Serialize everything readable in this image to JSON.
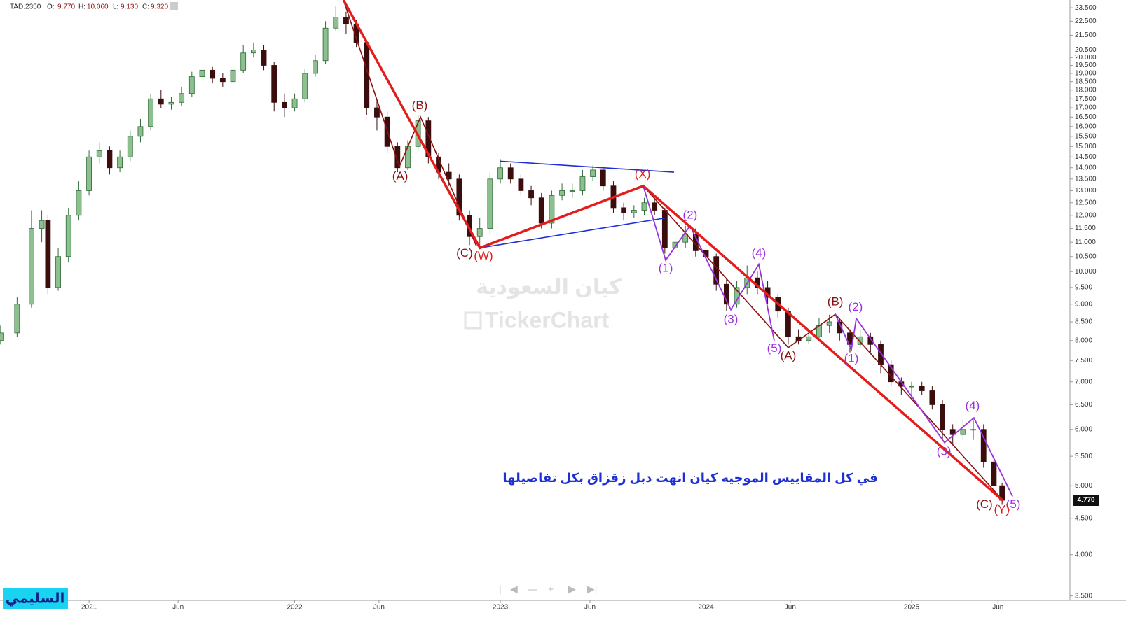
{
  "header": {
    "symbol": "TAD.2350",
    "fields": [
      {
        "label": "O:",
        "value": "9.770"
      },
      {
        "label": "H:",
        "value": "10.060"
      },
      {
        "label": "L:",
        "value": "9.130"
      },
      {
        "label": "C:",
        "value": "9.320"
      }
    ]
  },
  "watermarks": [
    "كيان السعودية",
    "TickerChart"
  ],
  "author": "السليمي",
  "chart_data": {
    "type": "candlestick",
    "log_scale": true,
    "grid": false,
    "caption": "في كل المقاييس الموجيه كيان انهت دبل زقزاق بكل تفاصيلها",
    "up_color": "#8cc08f",
    "up_edge": "#2f6b36",
    "down_color": "#3b0d0d",
    "xlim": [
      2020.567,
      2025.77
    ],
    "ylim": [
      3.45,
      24.1
    ],
    "xticks": [
      {
        "value": 2021,
        "label": "2021"
      },
      {
        "value": 2021.433,
        "label": "Jun"
      },
      {
        "value": 2022,
        "label": "2022"
      },
      {
        "value": 2022.41,
        "label": "Jun"
      },
      {
        "value": 2023,
        "label": "2023"
      },
      {
        "value": 2023.436,
        "label": "Jun"
      },
      {
        "value": 2024,
        "label": "2024"
      },
      {
        "value": 2024.41,
        "label": "Jun"
      },
      {
        "value": 2025,
        "label": "2025"
      },
      {
        "value": 2025.42,
        "label": "Jun"
      }
    ],
    "yticks": [
      {
        "value": 23.5,
        "label": "23.500"
      },
      {
        "value": 22.5,
        "label": "22.500"
      },
      {
        "value": 21.5,
        "label": "21.500"
      },
      {
        "value": 20.5,
        "label": "20.500"
      },
      {
        "value": 20,
        "label": "20.000"
      },
      {
        "value": 19.5,
        "label": "19.500"
      },
      {
        "value": 19,
        "label": "19.000"
      },
      {
        "value": 18.5,
        "label": "18.500"
      },
      {
        "value": 18,
        "label": "18.000"
      },
      {
        "value": 17.5,
        "label": "17.500"
      },
      {
        "value": 17,
        "label": "17.000"
      },
      {
        "value": 16.5,
        "label": "16.500"
      },
      {
        "value": 16,
        "label": "16.000"
      },
      {
        "value": 15.5,
        "label": "15.500"
      },
      {
        "value": 15,
        "label": "15.000"
      },
      {
        "value": 14.5,
        "label": "14.500"
      },
      {
        "value": 14,
        "label": "14.000"
      },
      {
        "value": 13.5,
        "label": "13.500"
      },
      {
        "value": 13,
        "label": "13.000"
      },
      {
        "value": 12.5,
        "label": "12.500"
      },
      {
        "value": 12,
        "label": "12.000"
      },
      {
        "value": 11.5,
        "label": "11.500"
      },
      {
        "value": 11,
        "label": "11.000"
      },
      {
        "value": 10.5,
        "label": "10.500"
      },
      {
        "value": 10,
        "label": "10.000"
      },
      {
        "value": 9.5,
        "label": "9.500"
      },
      {
        "value": 9,
        "label": "9.000"
      },
      {
        "value": 8.5,
        "label": "8.500"
      },
      {
        "value": 8,
        "label": "8.000"
      },
      {
        "value": 7.5,
        "label": "7.500"
      },
      {
        "value": 7,
        "label": "7.000"
      },
      {
        "value": 6.5,
        "label": "6.500"
      },
      {
        "value": 6,
        "label": "6.000"
      },
      {
        "value": 5.5,
        "label": "5.500"
      },
      {
        "value": 5,
        "label": "5.000"
      },
      {
        "value": 4.5,
        "label": "4.500"
      },
      {
        "value": 4,
        "label": "4.000"
      },
      {
        "value": 3.5,
        "label": "3.500"
      }
    ],
    "last_price": {
      "value": 4.77,
      "label": "4.770"
    },
    "x": [
      2020.57,
      2020.65,
      2020.72,
      2020.77,
      2020.8,
      2020.85,
      2020.9,
      2020.95,
      2021.0,
      2021.05,
      2021.1,
      2021.15,
      2021.2,
      2021.25,
      2021.3,
      2021.35,
      2021.4,
      2021.45,
      2021.5,
      2021.55,
      2021.6,
      2021.65,
      2021.7,
      2021.75,
      2021.8,
      2021.85,
      2021.9,
      2021.95,
      2022.0,
      2022.05,
      2022.1,
      2022.15,
      2022.2,
      2022.25,
      2022.3,
      2022.35,
      2022.4,
      2022.45,
      2022.5,
      2022.55,
      2022.6,
      2022.65,
      2022.7,
      2022.75,
      2022.8,
      2022.85,
      2022.9,
      2022.95,
      2023.0,
      2023.05,
      2023.1,
      2023.15,
      2023.2,
      2023.25,
      2023.3,
      2023.35,
      2023.4,
      2023.45,
      2023.5,
      2023.55,
      2023.6,
      2023.65,
      2023.7,
      2023.75,
      2023.8,
      2023.85,
      2023.9,
      2023.95,
      2024.0,
      2024.05,
      2024.1,
      2024.15,
      2024.2,
      2024.25,
      2024.3,
      2024.35,
      2024.4,
      2024.45,
      2024.5,
      2024.55,
      2024.6,
      2024.65,
      2024.7,
      2024.75,
      2024.8,
      2024.85,
      2024.9,
      2024.95,
      2025.0,
      2025.05,
      2025.1,
      2025.15,
      2025.2,
      2025.25,
      2025.3,
      2025.35,
      2025.4,
      2025.44
    ],
    "open": [
      8.0,
      8.2,
      9.0,
      11.5,
      11.8,
      9.5,
      10.5,
      12.0,
      13.0,
      14.5,
      14.8,
      14.0,
      14.5,
      15.5,
      16.0,
      17.5,
      17.2,
      17.3,
      17.8,
      18.8,
      19.2,
      18.7,
      18.5,
      19.2,
      20.3,
      20.5,
      19.5,
      17.3,
      17.0,
      17.5,
      19.0,
      19.8,
      22.0,
      22.8,
      22.3,
      21.0,
      17.0,
      16.5,
      15.0,
      14.0,
      15.0,
      16.3,
      14.5,
      13.8,
      13.5,
      12.0,
      11.2,
      11.5,
      13.5,
      14.0,
      13.5,
      13.0,
      12.7,
      11.7,
      12.8,
      13.0,
      13.0,
      13.6,
      13.9,
      13.2,
      12.3,
      12.1,
      12.2,
      12.5,
      12.2,
      10.8,
      11.0,
      11.3,
      10.7,
      10.5,
      9.6,
      9.0,
      9.5,
      9.8,
      9.5,
      9.2,
      8.8,
      8.1,
      8.0,
      8.1,
      8.4,
      8.5,
      8.2,
      7.9,
      8.1,
      7.9,
      7.4,
      7.0,
      6.9,
      6.9,
      6.8,
      6.5,
      6.0,
      5.9,
      6.0,
      6.0,
      5.4,
      5.0
    ],
    "high": [
      8.4,
      9.2,
      12.2,
      12.2,
      12.0,
      10.8,
      12.3,
      13.4,
      14.8,
      15.2,
      15.0,
      14.8,
      15.8,
      16.4,
      17.8,
      18.0,
      17.6,
      18.2,
      19.1,
      19.6,
      19.4,
      19.0,
      19.5,
      20.8,
      21.0,
      20.8,
      19.7,
      17.8,
      17.8,
      19.3,
      20.2,
      22.5,
      23.6,
      23.2,
      22.6,
      21.2,
      17.5,
      16.8,
      15.2,
      15.3,
      16.6,
      16.5,
      14.7,
      14.2,
      13.7,
      12.2,
      11.9,
      13.8,
      14.4,
      14.2,
      13.7,
      13.2,
      12.9,
      13.0,
      13.3,
      13.3,
      13.9,
      14.1,
      14.0,
      13.4,
      12.5,
      12.4,
      12.7,
      12.7,
      12.3,
      11.3,
      11.6,
      11.5,
      10.9,
      10.6,
      9.8,
      9.7,
      10.2,
      10.0,
      9.7,
      9.3,
      8.9,
      8.3,
      8.3,
      8.6,
      8.7,
      8.6,
      8.3,
      8.3,
      8.2,
      8.0,
      7.5,
      7.1,
      7.0,
      7.0,
      6.9,
      6.6,
      6.1,
      6.2,
      6.2,
      6.1,
      5.5,
      5.05
    ],
    "low": [
      7.9,
      8.1,
      8.9,
      11.0,
      9.3,
      9.4,
      10.3,
      11.8,
      12.8,
      14.2,
      13.7,
      13.8,
      14.3,
      15.2,
      15.8,
      17.0,
      16.9,
      17.1,
      17.6,
      18.6,
      18.4,
      18.2,
      18.3,
      19.0,
      20.0,
      19.2,
      16.8,
      16.5,
      16.8,
      17.3,
      18.8,
      19.6,
      21.8,
      21.6,
      20.7,
      16.6,
      15.8,
      14.7,
      13.8,
      13.9,
      14.8,
      14.2,
      13.5,
      13.2,
      11.8,
      10.9,
      10.8,
      11.3,
      13.3,
      13.3,
      12.8,
      12.4,
      11.5,
      11.5,
      12.6,
      12.7,
      12.8,
      13.4,
      13.0,
      12.1,
      11.8,
      11.9,
      12.0,
      12.0,
      10.6,
      10.6,
      10.8,
      10.5,
      10.3,
      9.4,
      8.8,
      8.9,
      9.3,
      9.3,
      9.0,
      8.6,
      7.9,
      7.9,
      7.9,
      8.0,
      8.2,
      8.0,
      7.7,
      7.8,
      7.7,
      7.2,
      6.9,
      6.7,
      6.7,
      6.7,
      6.4,
      5.8,
      5.7,
      5.8,
      5.8,
      5.3,
      4.9,
      4.7
    ],
    "close": [
      8.2,
      9.0,
      11.5,
      11.8,
      9.5,
      10.5,
      12.0,
      13.0,
      14.5,
      14.8,
      14.0,
      14.5,
      15.5,
      16.0,
      17.5,
      17.2,
      17.3,
      17.8,
      18.8,
      19.2,
      18.7,
      18.5,
      19.2,
      20.3,
      20.5,
      19.5,
      17.3,
      17.0,
      17.5,
      19.0,
      19.8,
      22.0,
      22.8,
      22.3,
      21.0,
      17.0,
      16.5,
      15.0,
      14.0,
      15.0,
      16.3,
      14.5,
      13.8,
      13.5,
      12.0,
      11.2,
      11.5,
      13.5,
      14.0,
      13.5,
      13.0,
      12.7,
      11.7,
      12.8,
      13.0,
      13.0,
      13.6,
      13.9,
      13.2,
      12.3,
      12.1,
      12.2,
      12.5,
      12.2,
      10.8,
      11.0,
      11.3,
      10.7,
      10.5,
      9.6,
      9.0,
      9.5,
      9.8,
      9.5,
      9.2,
      8.8,
      8.1,
      8.0,
      8.1,
      8.4,
      8.5,
      8.2,
      7.9,
      8.1,
      7.9,
      7.4,
      7.0,
      6.9,
      6.9,
      6.8,
      6.5,
      6.0,
      5.9,
      6.0,
      6.0,
      5.4,
      5.0,
      4.77
    ],
    "lines": [
      {
        "color": "#1f2fd6",
        "width": 1.6,
        "x": [
          2023.0,
          2023.845
        ],
        "y": [
          14.3,
          13.8
        ]
      },
      {
        "color": "#1f2fd6",
        "width": 1.6,
        "x": [
          2022.901,
          2023.804
        ],
        "y": [
          10.8,
          11.9
        ]
      },
      {
        "color": "#8b1010",
        "width": 1.6,
        "x": [
          2022.237,
          2022.509,
          2022.612,
          2022.884
        ],
        "y": [
          24.1,
          14.05,
          16.5,
          10.86
        ]
      },
      {
        "color": "#8b1010",
        "width": 1.6,
        "x": [
          2023.695,
          2024.4,
          2024.629,
          2025.446
        ],
        "y": [
          13.2,
          7.82,
          8.71,
          4.76
        ]
      },
      {
        "color": "#9b30e0",
        "width": 1.8,
        "x": [
          2023.695,
          2023.804,
          2023.923,
          2024.121,
          2024.257,
          2024.332
        ],
        "y": [
          13.2,
          10.38,
          11.6,
          8.84,
          10.24,
          8.0
        ]
      },
      {
        "color": "#9b30e0",
        "width": 1.8,
        "x": [
          2024.629,
          2024.707,
          2024.731,
          2025.16,
          2025.303,
          2025.491
        ],
        "y": [
          8.71,
          7.77,
          8.59,
          5.75,
          6.23,
          4.83
        ]
      },
      {
        "color": "#e41c1c",
        "width": 3.5,
        "x": [
          2022.237,
          2022.901,
          2023.695,
          2025.446
        ],
        "y": [
          24.1,
          10.8,
          13.2,
          4.76
        ]
      }
    ],
    "annotations": [
      {
        "text": "(A)",
        "x": 2022.513,
        "y": 13.6,
        "color": "#8b1010"
      },
      {
        "text": "(B)",
        "x": 2022.608,
        "y": 17.1,
        "color": "#8b1010"
      },
      {
        "text": "(C)",
        "x": 2022.826,
        "y": 10.6,
        "color": "#8b1010"
      },
      {
        "text": "(W)",
        "x": 2022.918,
        "y": 10.5,
        "color": "#e41c1c"
      },
      {
        "text": "(X)",
        "x": 2023.692,
        "y": 13.7,
        "color": "#e41c1c"
      },
      {
        "text": "(1)",
        "x": 2023.804,
        "y": 10.1,
        "color": "#9b30e0"
      },
      {
        "text": "(2)",
        "x": 2023.923,
        "y": 12.0,
        "color": "#9b30e0"
      },
      {
        "text": "(3)",
        "x": 2024.121,
        "y": 8.56,
        "color": "#9b30e0"
      },
      {
        "text": "(4)",
        "x": 2024.257,
        "y": 10.6,
        "color": "#9b30e0"
      },
      {
        "text": "(5)",
        "x": 2024.332,
        "y": 7.79,
        "color": "#9b30e0"
      },
      {
        "text": "(A)",
        "x": 2024.4,
        "y": 7.61,
        "color": "#8b1010"
      },
      {
        "text": "(B)",
        "x": 2024.629,
        "y": 9.06,
        "color": "#8b1010"
      },
      {
        "text": "(1)",
        "x": 2024.707,
        "y": 7.54,
        "color": "#9b30e0"
      },
      {
        "text": "(2)",
        "x": 2024.727,
        "y": 8.9,
        "color": "#9b30e0"
      },
      {
        "text": "(3)",
        "x": 2025.157,
        "y": 5.58,
        "color": "#9b30e0"
      },
      {
        "text": "(4)",
        "x": 2025.296,
        "y": 6.47,
        "color": "#9b30e0"
      },
      {
        "text": "(5)",
        "x": 2025.494,
        "y": 4.7,
        "color": "#9b30e0"
      },
      {
        "text": "(C)",
        "x": 2025.354,
        "y": 4.7,
        "color": "#8b1010"
      },
      {
        "text": "(Y)",
        "x": 2025.439,
        "y": 4.62,
        "color": "#e41c1c"
      }
    ]
  }
}
